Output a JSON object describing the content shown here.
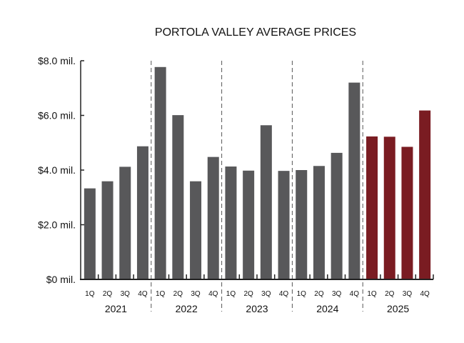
{
  "chart_data": {
    "type": "bar",
    "title": "PORTOLA VALLEY AVERAGE PRICES",
    "xlabel": "",
    "ylabel": "",
    "ylim": [
      0,
      8
    ],
    "yticks": [
      0,
      2,
      4,
      6,
      8
    ],
    "ytick_labels": [
      "$0 mil.",
      "$2.0 mil.",
      "$4.0 mil.",
      "$6.0 mil.",
      "$8.0 mil."
    ],
    "quarter_labels": [
      "1Q",
      "2Q",
      "3Q",
      "4Q"
    ],
    "groups": [
      {
        "year": "2021",
        "values": [
          3.33,
          3.59,
          4.12,
          4.87
        ]
      },
      {
        "year": "2022",
        "values": [
          7.77,
          6.01,
          3.59,
          4.48
        ]
      },
      {
        "year": "2023",
        "values": [
          4.13,
          3.98,
          5.64,
          3.97
        ]
      },
      {
        "year": "2024",
        "values": [
          4.0,
          4.15,
          4.63,
          7.2
        ]
      },
      {
        "year": "2025",
        "values": [
          5.23,
          5.22,
          4.85,
          6.18
        ]
      }
    ],
    "colors": {
      "default": "#58585a",
      "highlight": "#7a1c22",
      "highlight_year": "2025"
    },
    "grid": false,
    "legend": "none"
  }
}
